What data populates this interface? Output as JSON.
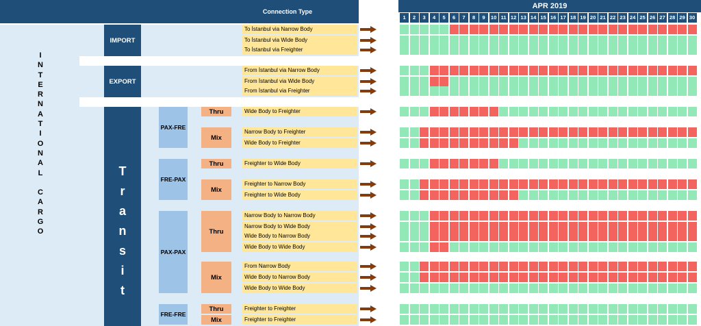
{
  "header": {
    "connection_type_label": "Connection Type"
  },
  "sidebar": {
    "title_letters": [
      "I",
      "N",
      "T",
      "E",
      "R",
      "N",
      "A",
      "T",
      "I",
      "O",
      "N",
      "A",
      "L",
      "",
      "C",
      "A",
      "R",
      "G",
      "O"
    ]
  },
  "sections": {
    "import": "IMPORT",
    "export": "EXPORT",
    "transit_letters": [
      "T",
      "r",
      "a",
      "n",
      "s",
      "i",
      "t"
    ]
  },
  "groups": [
    "PAX-FRE",
    "FRE-PAX",
    "PAX-PAX",
    "FRE-FRE"
  ],
  "tags": {
    "thru": "Thru",
    "mix": "Mix"
  },
  "calendar": {
    "month": "APR 2019",
    "days": [
      "1",
      "2",
      "3",
      "4",
      "5",
      "6",
      "7",
      "8",
      "9",
      "10",
      "11",
      "12",
      "13",
      "14",
      "15",
      "16",
      "17",
      "18",
      "19",
      "20",
      "21",
      "22",
      "23",
      "24",
      "25",
      "26",
      "27",
      "28",
      "29",
      "30"
    ]
  },
  "legend_colors": {
    "active": "#f4645f",
    "inactive": "#93e8b8",
    "navy": "#1f4e79",
    "label_bg": "#ffe699"
  },
  "rows": [
    {
      "label": "To İstanbul via Narrow Body",
      "active_ranges": [
        [
          6,
          30
        ]
      ]
    },
    {
      "label": "To İstanbul via Wide Body",
      "active_ranges": []
    },
    {
      "label": "To İstanbul via Freighter",
      "active_ranges": []
    },
    {
      "label": "From İstanbul via Narrow Body",
      "active_ranges": [
        [
          4,
          30
        ]
      ]
    },
    {
      "label": "From İstanbul via Wide Body",
      "active_ranges": [
        [
          4,
          5
        ]
      ]
    },
    {
      "label": "From İstanbul via Freighter",
      "active_ranges": []
    },
    {
      "label": "Wide Body to Freighter",
      "active_ranges": [
        [
          4,
          10
        ]
      ]
    },
    {
      "label": "Narrow Body to Freighter",
      "active_ranges": [
        [
          3,
          30
        ]
      ]
    },
    {
      "label": "Wide Body to Freighter",
      "active_ranges": [
        [
          3,
          12
        ]
      ]
    },
    {
      "label": "Freighter to Wide Body",
      "active_ranges": [
        [
          4,
          10
        ]
      ]
    },
    {
      "label": "Freighter to Narrow Body",
      "active_ranges": [
        [
          3,
          30
        ]
      ]
    },
    {
      "label": "Freighter to Wide Body",
      "active_ranges": [
        [
          3,
          12
        ]
      ]
    },
    {
      "label": "Narrow Body to Narrow Body",
      "active_ranges": [
        [
          4,
          30
        ]
      ]
    },
    {
      "label": "Narrow Body to Wide Body",
      "active_ranges": [
        [
          4,
          30
        ]
      ]
    },
    {
      "label": "Wide Body to Narrow Body",
      "active_ranges": [
        [
          4,
          30
        ]
      ]
    },
    {
      "label": "Wide Body to Wide Body",
      "active_ranges": [
        [
          4,
          5
        ]
      ]
    },
    {
      "label": "From Narrow Body",
      "active_ranges": [
        [
          3,
          30
        ]
      ]
    },
    {
      "label": "Wide Body to Narrow Body",
      "active_ranges": [
        [
          3,
          30
        ]
      ]
    },
    {
      "label": "Wide Body to Wide Body",
      "active_ranges": []
    },
    {
      "label": "Freighter to Freighter",
      "active_ranges": []
    },
    {
      "label": "Freighter to Freighter",
      "active_ranges": []
    }
  ]
}
